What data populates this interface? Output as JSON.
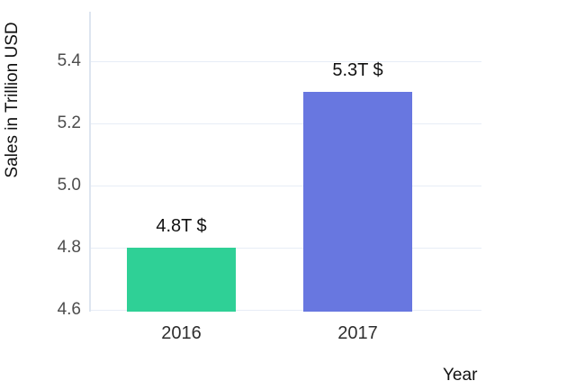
{
  "chart_data": {
    "type": "bar",
    "title": "",
    "categories": [
      "2016",
      "2017"
    ],
    "values": [
      4.8,
      5.3
    ],
    "bar_labels": [
      "4.8T $",
      "5.3T $"
    ],
    "bar_colors": [
      "#2fd096",
      "#6877e0"
    ],
    "xlabel": "Year",
    "ylabel": "Sales in Trillion USD",
    "ylim": [
      4.594,
      5.558
    ],
    "ytick_values": [
      4.6,
      4.8,
      5.0,
      5.2,
      5.4
    ],
    "ytick_labels": [
      "4.6",
      "4.8",
      "5.0",
      "5.2",
      "5.4"
    ],
    "grid": true,
    "legend": "none"
  }
}
